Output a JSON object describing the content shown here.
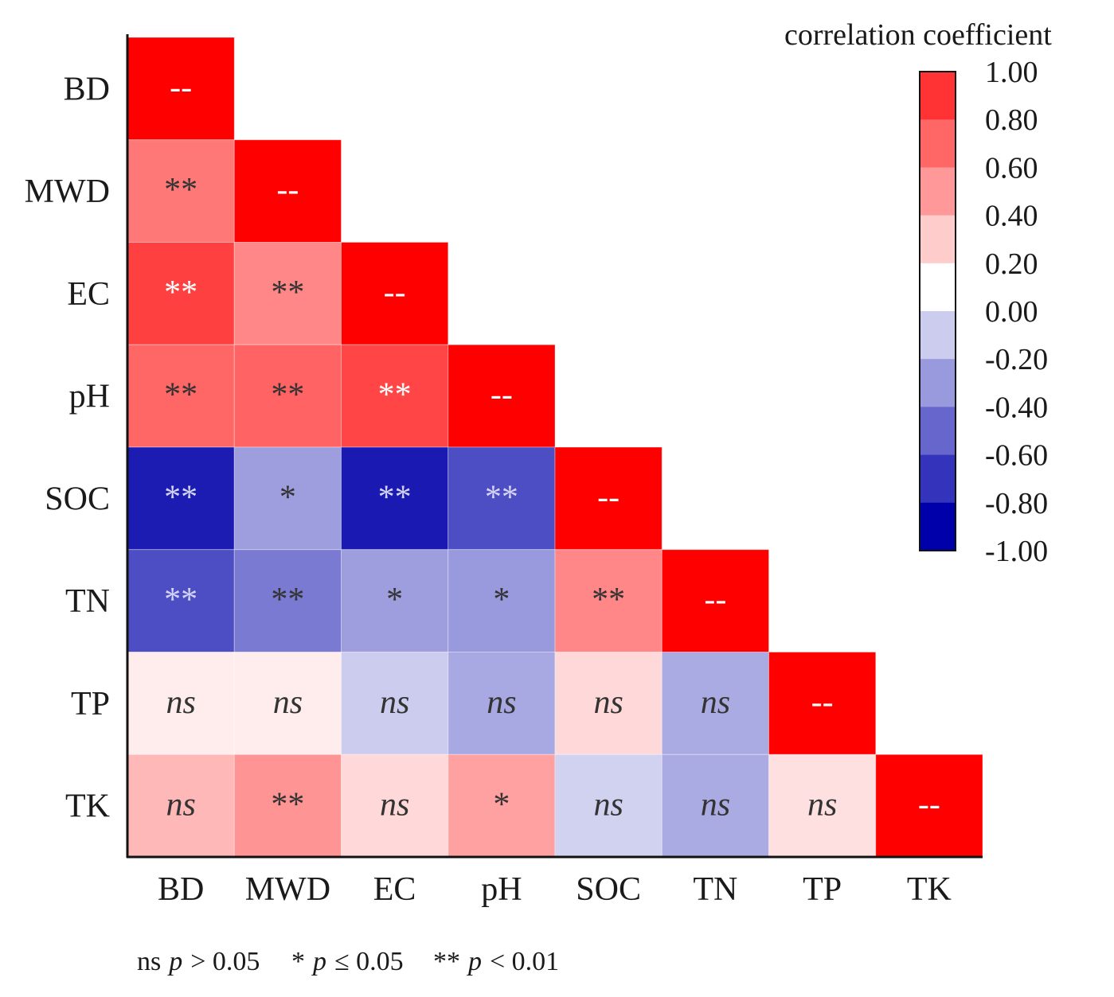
{
  "chart_data": {
    "type": "heatmap",
    "title": "",
    "variables": [
      "BD",
      "MWD",
      "EC",
      "pH",
      "SOC",
      "TN",
      "TP",
      "TK"
    ],
    "matrix": [
      [
        1.0
      ],
      [
        0.53,
        1.0
      ],
      [
        0.75,
        0.47,
        1.0
      ],
      [
        0.6,
        0.61,
        0.73,
        1.0
      ],
      [
        -0.89,
        -0.38,
        -0.9,
        -0.7,
        1.0
      ],
      [
        -0.7,
        -0.52,
        -0.38,
        -0.4,
        0.47,
        1.0
      ],
      [
        0.07,
        0.07,
        -0.2,
        -0.34,
        0.15,
        -0.33,
        1.0
      ],
      [
        0.28,
        0.42,
        0.15,
        0.37,
        -0.18,
        -0.33,
        0.12,
        1.0
      ]
    ],
    "significance": [
      [
        "--"
      ],
      [
        "**",
        "--"
      ],
      [
        "**",
        "**",
        "--"
      ],
      [
        "**",
        "**",
        "**",
        "--"
      ],
      [
        "**",
        "*",
        "**",
        "**",
        "--"
      ],
      [
        "**",
        "**",
        "*",
        "*",
        "**",
        "--"
      ],
      [
        "ns",
        "ns",
        "ns",
        "ns",
        "ns",
        "ns",
        "--"
      ],
      [
        "ns",
        "**",
        "ns",
        "*",
        "ns",
        "ns",
        "ns",
        "--"
      ]
    ],
    "colorbar": {
      "title": "correlation coefficient",
      "min": -1,
      "max": 1,
      "ticks": [
        "1.00",
        "0.80",
        "0.60",
        "0.40",
        "0.20",
        "0.00",
        "-0.20",
        "-0.40",
        "-0.60",
        "-0.80",
        "-1.00"
      ]
    },
    "colormap": {
      "negative": "#0000AA",
      "zero": "#FFFFFF",
      "positive": "#FF0000"
    },
    "mark_colors": {
      "dark": "#333333",
      "light_on_red": "#FFFFFF",
      "light_on_blue": "#D4D4F4"
    },
    "legend": [
      {
        "mark": "ns",
        "symbol": "p",
        "condition": "> 0.05"
      },
      {
        "mark": "*",
        "symbol": "p",
        "condition": "≤ 0.05"
      },
      {
        "mark": "**",
        "symbol": "p",
        "condition": "< 0.01"
      }
    ]
  }
}
